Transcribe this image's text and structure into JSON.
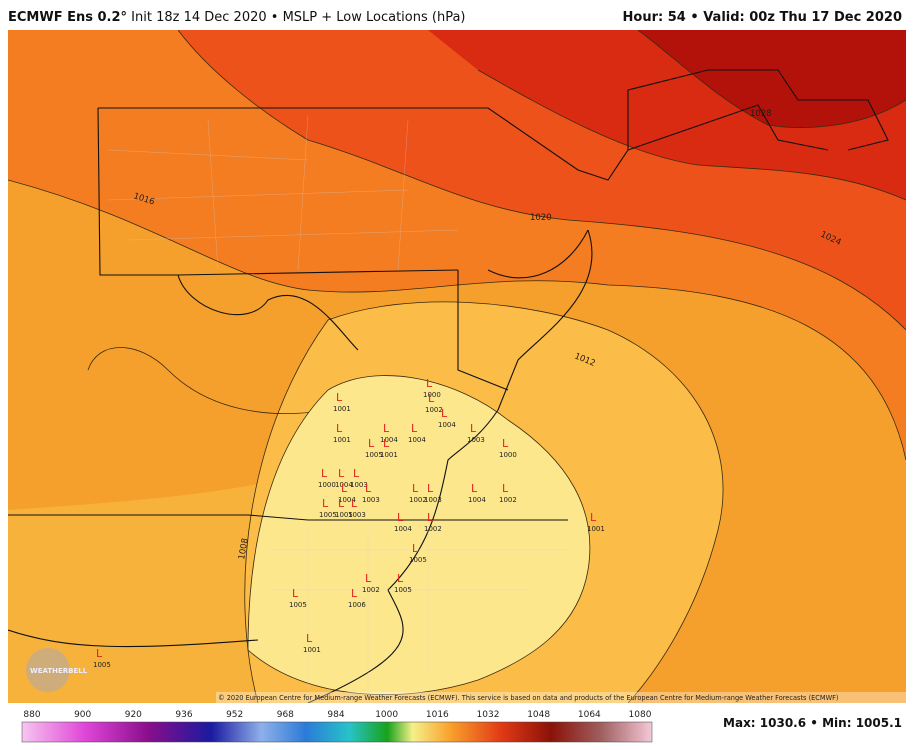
{
  "header": {
    "model": "ECMWF Ens 0.2°",
    "subtitle": "Init 18z 14 Dec 2020 • MSLP + Low Locations (hPa)",
    "right": "Hour: 54 • Valid: 00z Thu 17 Dec 2020"
  },
  "contour_labels": [
    "1028",
    "1024",
    "1020",
    "1016",
    "1012",
    "1008"
  ],
  "low_symbol": "L",
  "lows": [
    "1001",
    "1001",
    "1004",
    "1000",
    "1002",
    "1004",
    "1003",
    "1000",
    "1004",
    "1005",
    "1001",
    "1000",
    "1004",
    "1003",
    "1004",
    "1003",
    "1002",
    "1003",
    "1004",
    "1002",
    "1005",
    "1005",
    "1003",
    "1004",
    "1002",
    "1001",
    "1005",
    "1002",
    "1005",
    "1005",
    "1006",
    "1001",
    "1005"
  ],
  "copyright": "© 2020 European Centre for Medium-range Weather Forecasts (ECMWF). This service is based on data and products of the European Centre for Medium-range Weather Forecasts (ECMWF)",
  "logo": "WEATHERBELL",
  "colorbar": {
    "labels": [
      "880",
      "900",
      "920",
      "936",
      "952",
      "968",
      "984",
      "1000",
      "1016",
      "1032",
      "1048",
      "1064",
      "1080"
    ]
  },
  "footer": {
    "stats": "Max: 1030.6 • Min: 1005.1"
  }
}
